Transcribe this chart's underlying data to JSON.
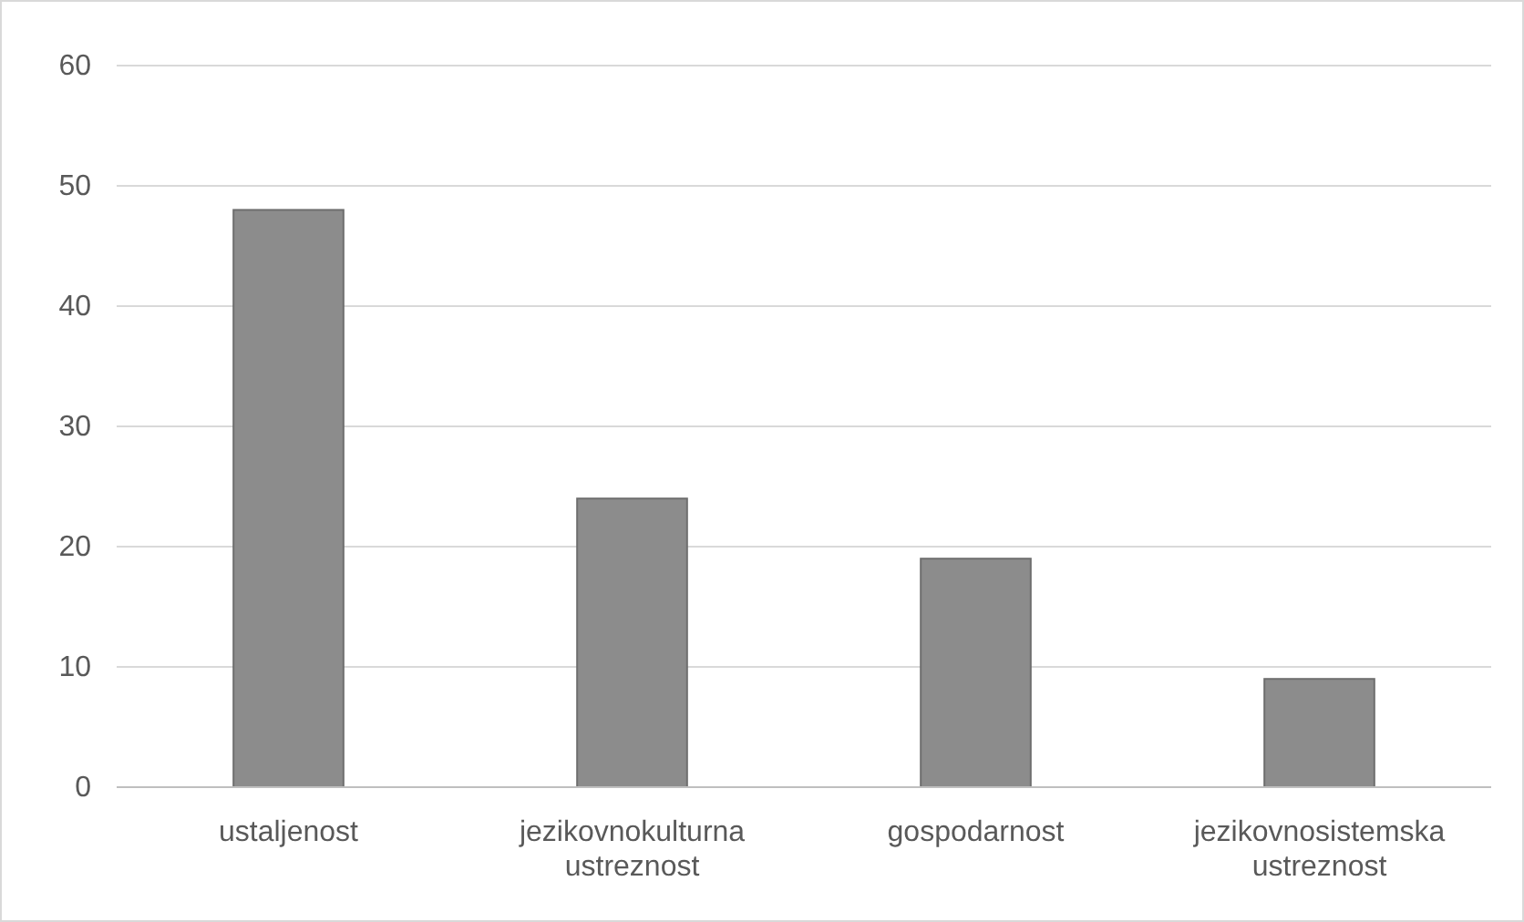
{
  "chart_data": {
    "type": "bar",
    "categories": [
      "ustaljenost",
      "jezikovnokulturna ustreznost",
      "gospodarnost",
      "jezikovnosistemska ustreznost"
    ],
    "values": [
      48,
      24,
      19,
      9
    ],
    "color": "#8c8c8c",
    "ylim": [
      0,
      60
    ],
    "yticks": [
      0,
      10,
      20,
      30,
      40,
      50,
      60
    ],
    "grid": "y"
  }
}
